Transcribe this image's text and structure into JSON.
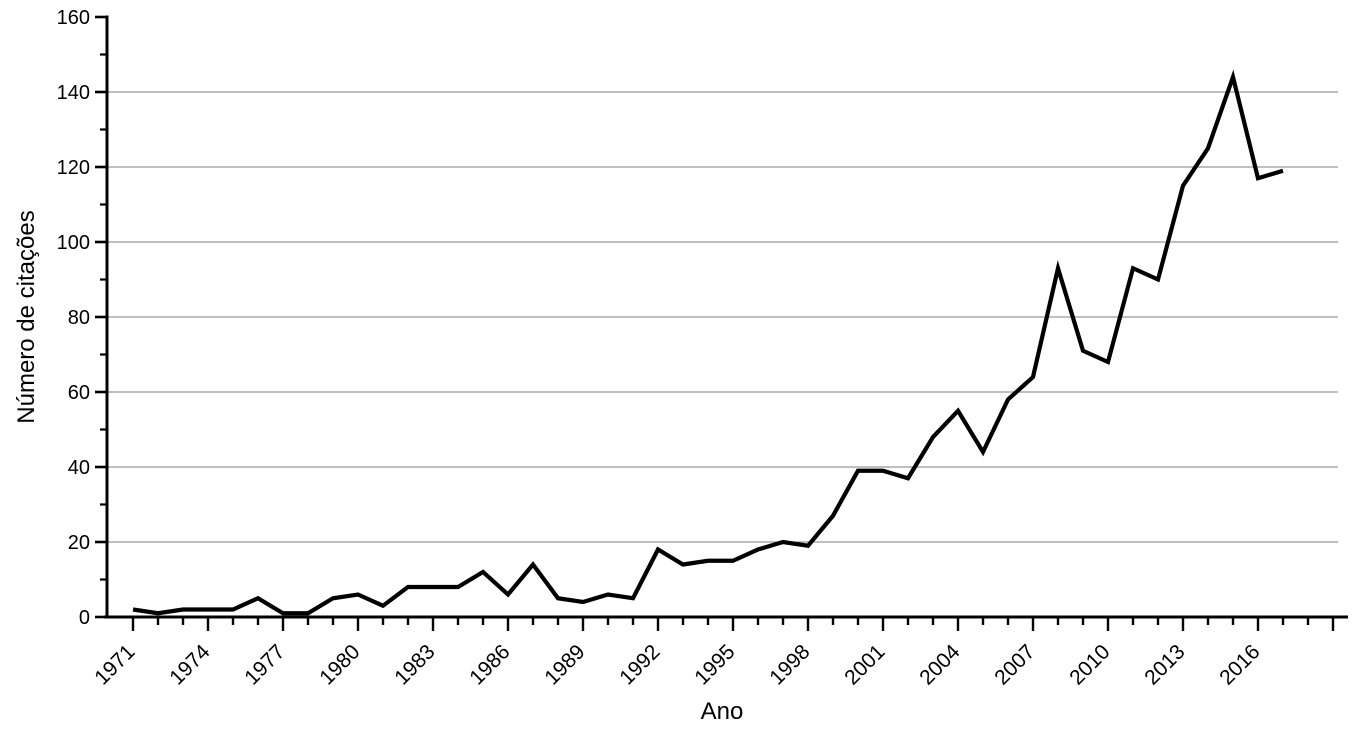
{
  "chart_data": {
    "type": "line",
    "title": "",
    "xlabel": "Ano",
    "ylabel": "Número de citações",
    "x": [
      1971,
      1972,
      1973,
      1974,
      1975,
      1976,
      1977,
      1978,
      1979,
      1980,
      1981,
      1982,
      1983,
      1984,
      1985,
      1986,
      1987,
      1988,
      1989,
      1990,
      1991,
      1992,
      1993,
      1994,
      1995,
      1996,
      1997,
      1998,
      1999,
      2000,
      2001,
      2002,
      2003,
      2004,
      2005,
      2006,
      2007,
      2008,
      2009,
      2010,
      2011,
      2012,
      2013,
      2014,
      2015,
      2016,
      2017
    ],
    "values": [
      2,
      1,
      2,
      2,
      2,
      5,
      1,
      1,
      5,
      6,
      3,
      8,
      8,
      8,
      12,
      6,
      14,
      5,
      4,
      6,
      5,
      18,
      14,
      15,
      15,
      18,
      20,
      19,
      27,
      39,
      39,
      37,
      48,
      55,
      44,
      58,
      64,
      93,
      71,
      68,
      93,
      90,
      115,
      125,
      144,
      117,
      119
    ],
    "y_axis": {
      "min": 0,
      "max": 160,
      "major_step": 20,
      "minor_step": 10,
      "tick_labels": [
        "0",
        "20",
        "40",
        "60",
        "80",
        "100",
        "120",
        "140",
        "160"
      ]
    },
    "x_ticks": {
      "first": 1971,
      "minor_every": 1,
      "last_tick": 2019,
      "labeled_every": 3,
      "last_label": 2016,
      "tick_labels": [
        "1971",
        "1974",
        "1977",
        "1980",
        "1983",
        "1986",
        "1989",
        "1992",
        "1995",
        "1998",
        "2001",
        "2004",
        "2007",
        "2010",
        "2013",
        "2016"
      ]
    },
    "grid": "horizontal-major",
    "legend": "none",
    "line_color": "#000000",
    "axis_color": "#000000",
    "grid_color": "#999999",
    "background": "#ffffff"
  }
}
